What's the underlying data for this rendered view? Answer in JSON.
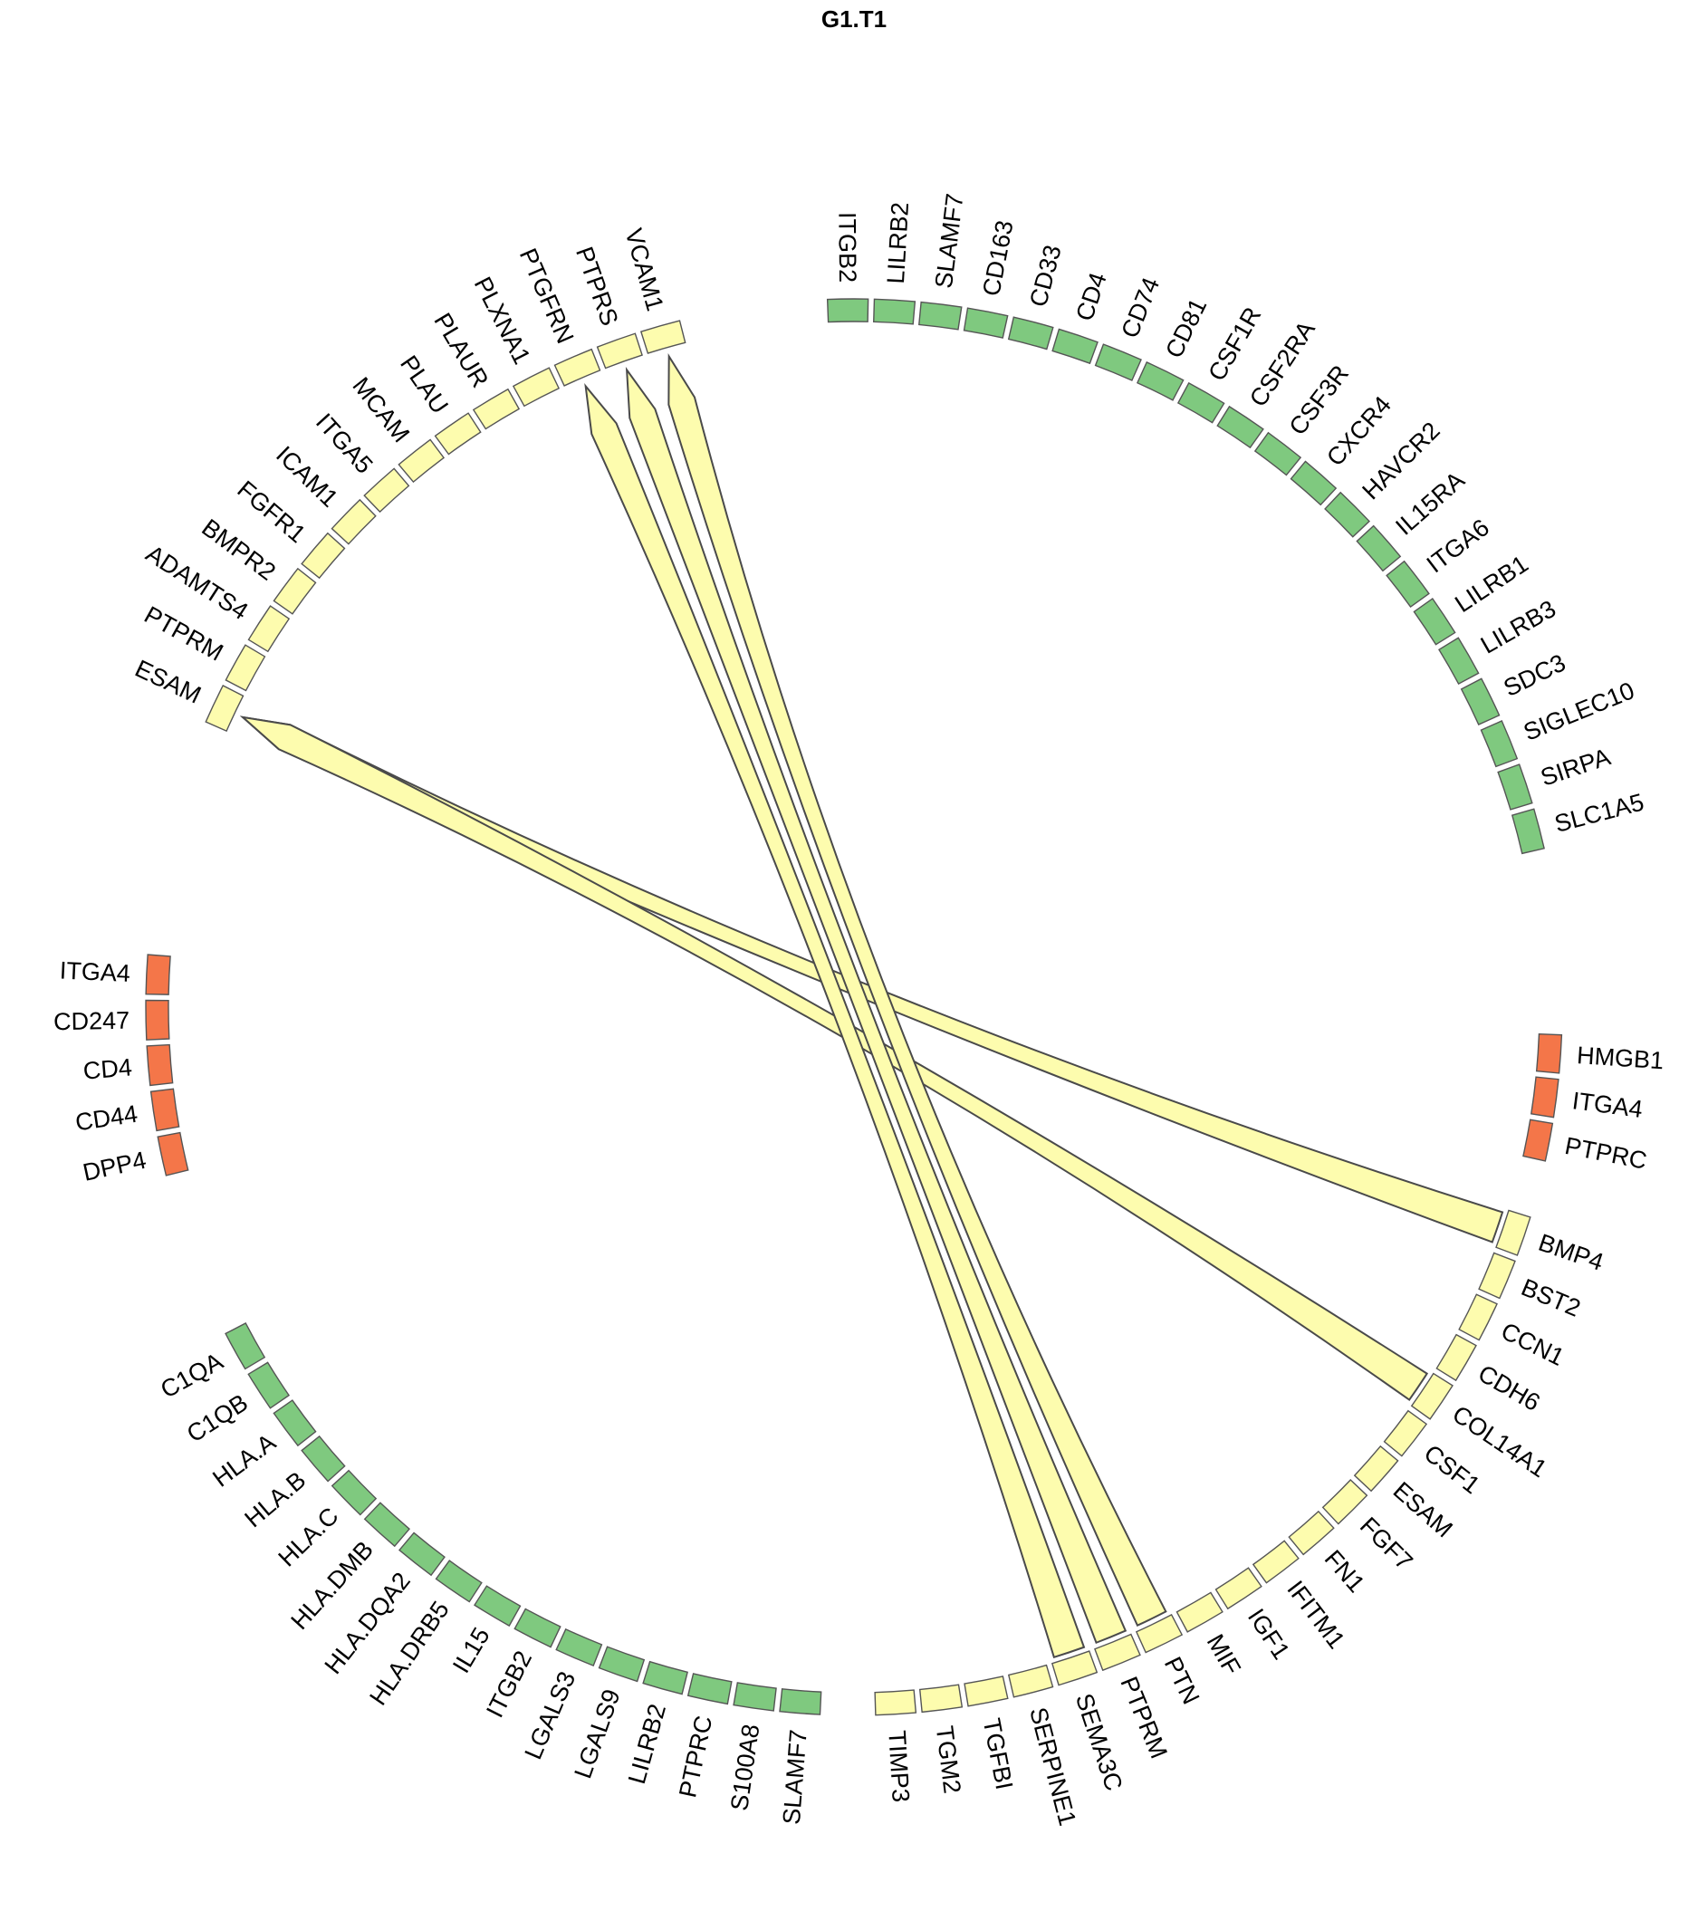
{
  "title": "G1.T1",
  "colors": {
    "yellow": "#fdfcae",
    "green": "#7fc97f",
    "orange": "#f47649",
    "link": "#fdfcae",
    "outline": "#555555"
  },
  "chart_data": {
    "type": "chord",
    "title": "G1.T1",
    "groups": [
      {
        "name": "yellow-top",
        "color": "yellow",
        "labels": [
          "ESAM",
          "PTPRM",
          "ADAMTS4",
          "BMPR2",
          "FGFR1",
          "ICAM1",
          "ITGA5",
          "MCAM",
          "PLAU",
          "PLAUR",
          "PLXNA1",
          "PTGFRN",
          "PTPRS",
          "VCAM1"
        ]
      },
      {
        "name": "green-top",
        "color": "green",
        "labels": [
          "ITGB2",
          "LILRB2",
          "SLAMF7",
          "CD163",
          "CD33",
          "CD4",
          "CD74",
          "CD81",
          "CSF1R",
          "CSF2RA",
          "CSF3R",
          "CXCR4",
          "HAVCR2",
          "IL15RA",
          "ITGA6",
          "LILRB1",
          "LILRB3",
          "SDC3",
          "SIGLEC10",
          "SIRPA",
          "SLC1A5"
        ]
      },
      {
        "name": "orange-right",
        "color": "orange",
        "labels": [
          "HMGB1",
          "ITGA4",
          "PTPRC"
        ]
      },
      {
        "name": "yellow-bottom",
        "color": "yellow",
        "labels": [
          "BMP4",
          "BST2",
          "CCN1",
          "CDH6",
          "COL14A1",
          "CSF1",
          "ESAM",
          "FGF7",
          "FN1",
          "IFITM1",
          "IGF1",
          "MIF",
          "PTN",
          "PTPRM",
          "SEMA3C",
          "SERPINE1",
          "TGFBI",
          "TGM2",
          "TIMP3"
        ]
      },
      {
        "name": "green-bottom",
        "color": "green",
        "labels": [
          "C1QA",
          "C1QB",
          "HLA.A",
          "HLA.B",
          "HLA.C",
          "HLA.DMB",
          "HLA.DQA2",
          "HLA.DRB5",
          "IL15",
          "ITGB2",
          "LGALS3",
          "LGALS9",
          "LILRB2",
          "PTPRC",
          "S100A8",
          "SLAMF7"
        ]
      },
      {
        "name": "orange-left",
        "color": "orange",
        "labels": [
          "ITGA4",
          "CD247",
          "CD4",
          "CD44",
          "DPP4"
        ]
      }
    ],
    "links": [
      {
        "from_group": "yellow-bottom",
        "from": "BMP4",
        "to_group": "yellow-top",
        "to": "ESAM"
      },
      {
        "from_group": "yellow-bottom",
        "from": "COL14A1",
        "to_group": "yellow-top",
        "to": "ESAM"
      },
      {
        "from_group": "yellow-bottom",
        "from": "SEMA3C",
        "to_group": "yellow-top",
        "to": "PTGFRN"
      },
      {
        "from_group": "yellow-bottom",
        "from": "PTPRM",
        "to_group": "yellow-top",
        "to": "PTPRS"
      },
      {
        "from_group": "yellow-bottom",
        "from": "PTN",
        "to_group": "yellow-top",
        "to": "VCAM1"
      }
    ]
  }
}
